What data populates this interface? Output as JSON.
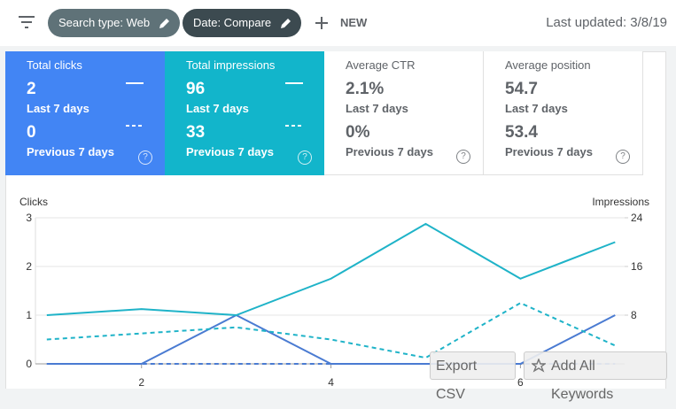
{
  "header": {
    "chips": [
      "Search type: Web",
      "Date: Compare"
    ],
    "new_button": "NEW",
    "last_updated": "Last updated: 3/8/19"
  },
  "cards": [
    {
      "title": "Total clicks",
      "value": 2,
      "period": "Last 7 days",
      "prev_value": 0,
      "prev_period": "Previous 7 days"
    },
    {
      "title": "Total impressions",
      "value": 96,
      "period": "Last 7 days",
      "prev_value": 33,
      "prev_period": "Previous 7 days"
    },
    {
      "title": "Average CTR",
      "value": "2.1%",
      "period": "Last 7 days",
      "prev_value": "0%",
      "prev_period": "Previous 7 days"
    },
    {
      "title": "Average position",
      "value": 54.7,
      "period": "Last 7 days",
      "prev_value": 53.4,
      "prev_period": "Previous 7 days"
    }
  ],
  "chart_data": {
    "type": "line",
    "ylabel": "Clicks",
    "y2label": "Impressions",
    "x": [
      1,
      2,
      3,
      4,
      5,
      6,
      7
    ],
    "xlim": [
      0.88,
      7.1
    ],
    "xticks": [
      2,
      4,
      6
    ],
    "ylim": [
      0,
      3
    ],
    "yticks": [
      0,
      1,
      2,
      3
    ],
    "y2lim": [
      0,
      24
    ],
    "y2ticks": [
      8,
      16,
      24
    ],
    "grid": true,
    "series": [
      {
        "color": "#4a7bd2",
        "dashed": false,
        "values": [
          0,
          0,
          1,
          0,
          0,
          0,
          1
        ]
      },
      {
        "color": "#4a7bd2",
        "dashed": true,
        "values": [
          0,
          0,
          0,
          0,
          0,
          0,
          0
        ]
      },
      {
        "color": "#1fb3c8",
        "dashed": false,
        "axis": "y2",
        "values": [
          8,
          9,
          8,
          14,
          23,
          14,
          20
        ]
      },
      {
        "color": "#1fb3c8",
        "dashed": true,
        "axis": "y2",
        "values": [
          4,
          5,
          6,
          4,
          1,
          10,
          3
        ]
      }
    ]
  },
  "buttons": [
    "Export CSV",
    "Add All Keywords"
  ]
}
